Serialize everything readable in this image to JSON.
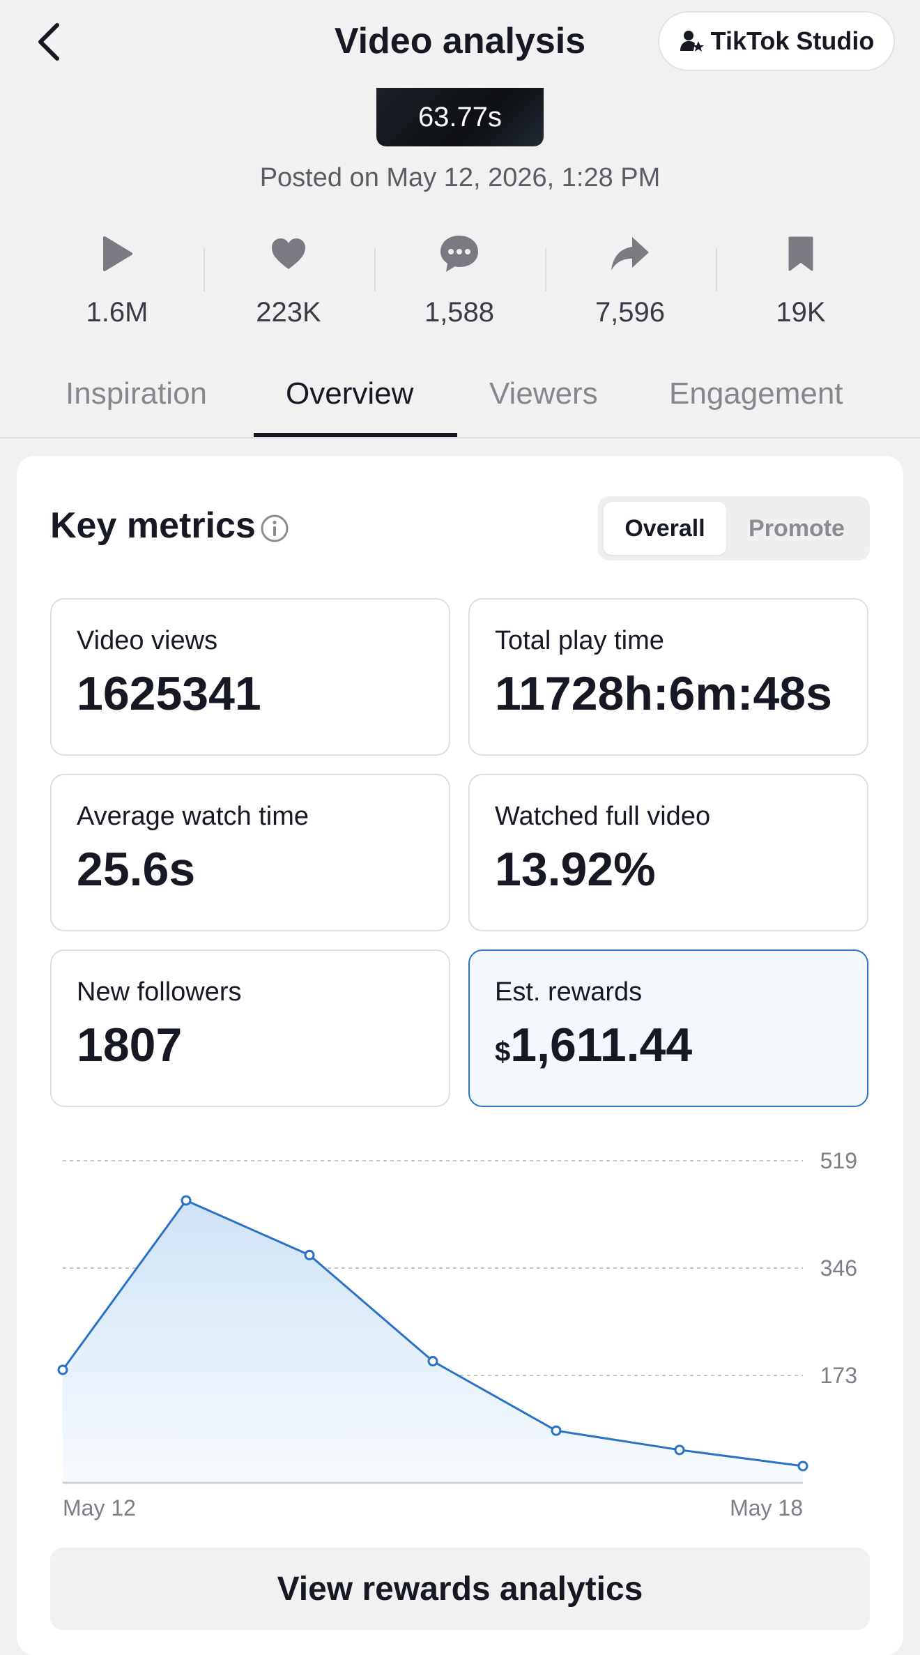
{
  "header": {
    "title": "Video analysis",
    "studio_label": "TikTok Studio"
  },
  "video": {
    "duration": "63.77s",
    "posted": "Posted on May 12, 2026, 1:28 PM"
  },
  "stats": [
    {
      "icon": "play-icon",
      "value": "1.6M"
    },
    {
      "icon": "heart-icon",
      "value": "223K"
    },
    {
      "icon": "comment-icon",
      "value": "1,588"
    },
    {
      "icon": "share-icon",
      "value": "7,596"
    },
    {
      "icon": "bookmark-icon",
      "value": "19K"
    }
  ],
  "tabs": [
    {
      "label": "Inspiration",
      "active": false
    },
    {
      "label": "Overview",
      "active": true
    },
    {
      "label": "Viewers",
      "active": false
    },
    {
      "label": "Engagement",
      "active": false
    }
  ],
  "key_metrics": {
    "title": "Key metrics",
    "toggle": {
      "overall": "Overall",
      "promote": "Promote",
      "selected": "Overall"
    },
    "metrics": [
      {
        "label": "Video views",
        "value": "1625341"
      },
      {
        "label": "Total play time",
        "value": "11728h:6m:48s"
      },
      {
        "label": "Average watch time",
        "value": "25.6s"
      },
      {
        "label": "Watched full video",
        "value": "13.92%"
      },
      {
        "label": "New followers",
        "value": "1807"
      },
      {
        "label": "Est. rewards",
        "currency": "$",
        "value": "1,611.44"
      }
    ]
  },
  "chart_data": {
    "type": "area",
    "x": [
      "May 12",
      "May 13",
      "May 14",
      "May 15",
      "May 16",
      "May 17",
      "May 18"
    ],
    "x_tick_labels": [
      "May 12",
      "May 18"
    ],
    "y_ticks": [
      173,
      346,
      519
    ],
    "ylim": [
      0,
      519
    ],
    "series": [
      {
        "values": [
          182,
          455,
          367,
          196,
          84,
          53,
          27
        ]
      }
    ],
    "color": "#2b72c4",
    "fill": "#d0e3f5",
    "grid": "dashed-horizontal"
  },
  "cta": {
    "label": "View rewards analytics"
  }
}
